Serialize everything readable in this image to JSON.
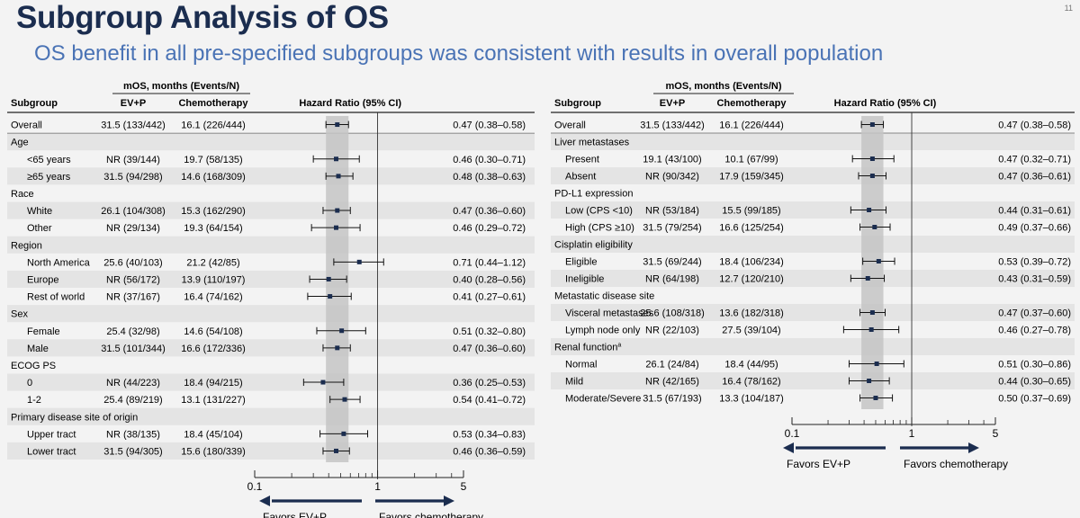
{
  "slide": {
    "title": "Subgroup Analysis of OS",
    "subtitle": "OS benefit in all pre-specified subgroups was consistent with results in overall population",
    "page_number": "11"
  },
  "chart_data": [
    {
      "type": "forest",
      "header": {
        "group": "mOS, months (Events/N)",
        "subgroup": "Subgroup",
        "arm1": "EV+P",
        "arm2": "Chemotherapy",
        "hr": "Hazard Ratio (95% CI)"
      },
      "axis": {
        "scale": "log",
        "range": [
          0.1,
          5
        ],
        "major_ticks": [
          0.1,
          1,
          5
        ],
        "tick_labels": [
          "0.1",
          "1",
          "5"
        ],
        "reference_line": 1
      },
      "favors_left": "Favors EV+P",
      "favors_right": "Favors chemotherapy",
      "overall_hr": 0.47,
      "overall_ci": [
        0.38,
        0.58
      ],
      "rows": [
        {
          "kind": "data",
          "label": "Overall",
          "indent": false,
          "ev": "31.5 (133/442)",
          "chemo": "16.1 (226/444)",
          "hr": 0.47,
          "lo": 0.38,
          "hi": 0.58,
          "hr_text": "0.47 (0.38–0.58)"
        },
        {
          "kind": "header",
          "label": "Age"
        },
        {
          "kind": "data",
          "label": "<65 years",
          "indent": true,
          "ev": "NR (39/144)",
          "chemo": "19.7 (58/135)",
          "hr": 0.46,
          "lo": 0.3,
          "hi": 0.71,
          "hr_text": "0.46 (0.30–0.71)"
        },
        {
          "kind": "data",
          "label": "≥65 years",
          "indent": true,
          "ev": "31.5 (94/298)",
          "chemo": "14.6 (168/309)",
          "hr": 0.48,
          "lo": 0.38,
          "hi": 0.63,
          "hr_text": "0.48 (0.38–0.63)"
        },
        {
          "kind": "header",
          "label": "Race"
        },
        {
          "kind": "data",
          "label": "White",
          "indent": true,
          "ev": "26.1 (104/308)",
          "chemo": "15.3 (162/290)",
          "hr": 0.47,
          "lo": 0.36,
          "hi": 0.6,
          "hr_text": "0.47 (0.36–0.60)"
        },
        {
          "kind": "data",
          "label": "Other",
          "indent": true,
          "ev": "NR (29/134)",
          "chemo": "19.3 (64/154)",
          "hr": 0.46,
          "lo": 0.29,
          "hi": 0.72,
          "hr_text": "0.46 (0.29–0.72)"
        },
        {
          "kind": "header",
          "label": "Region"
        },
        {
          "kind": "data",
          "label": "North America",
          "indent": true,
          "ev": "25.6 (40/103)",
          "chemo": "21.2 (42/85)",
          "hr": 0.71,
          "lo": 0.44,
          "hi": 1.12,
          "hr_text": "0.71 (0.44–1.12)"
        },
        {
          "kind": "data",
          "label": "Europe",
          "indent": true,
          "ev": "NR (56/172)",
          "chemo": "13.9 (110/197)",
          "hr": 0.4,
          "lo": 0.28,
          "hi": 0.56,
          "hr_text": "0.40 (0.28–0.56)"
        },
        {
          "kind": "data",
          "label": "Rest of world",
          "indent": true,
          "ev": "NR (37/167)",
          "chemo": "16.4 (74/162)",
          "hr": 0.41,
          "lo": 0.27,
          "hi": 0.61,
          "hr_text": "0.41 (0.27–0.61)"
        },
        {
          "kind": "header",
          "label": "Sex"
        },
        {
          "kind": "data",
          "label": "Female",
          "indent": true,
          "ev": "25.4 (32/98)",
          "chemo": "14.6 (54/108)",
          "hr": 0.51,
          "lo": 0.32,
          "hi": 0.8,
          "hr_text": "0.51 (0.32–0.80)"
        },
        {
          "kind": "data",
          "label": "Male",
          "indent": true,
          "ev": "31.5 (101/344)",
          "chemo": "16.6 (172/336)",
          "hr": 0.47,
          "lo": 0.36,
          "hi": 0.6,
          "hr_text": "0.47 (0.36–0.60)"
        },
        {
          "kind": "header",
          "label": "ECOG PS"
        },
        {
          "kind": "data",
          "label": "0",
          "indent": true,
          "ev": "NR (44/223)",
          "chemo": "18.4 (94/215)",
          "hr": 0.36,
          "lo": 0.25,
          "hi": 0.53,
          "hr_text": "0.36 (0.25–0.53)"
        },
        {
          "kind": "data",
          "label": "1-2",
          "indent": true,
          "ev": "25.4 (89/219)",
          "chemo": "13.1 (131/227)",
          "hr": 0.54,
          "lo": 0.41,
          "hi": 0.72,
          "hr_text": "0.54 (0.41–0.72)"
        },
        {
          "kind": "header",
          "label": "Primary disease site of origin"
        },
        {
          "kind": "data",
          "label": "Upper tract",
          "indent": true,
          "ev": "NR (38/135)",
          "chemo": "18.4 (45/104)",
          "hr": 0.53,
          "lo": 0.34,
          "hi": 0.83,
          "hr_text": "0.53 (0.34–0.83)"
        },
        {
          "kind": "data",
          "label": "Lower tract",
          "indent": true,
          "ev": "31.5 (94/305)",
          "chemo": "15.6 (180/339)",
          "hr": 0.46,
          "lo": 0.36,
          "hi": 0.59,
          "hr_text": "0.46 (0.36–0.59)"
        }
      ]
    },
    {
      "type": "forest",
      "header": {
        "group": "mOS, months (Events/N)",
        "subgroup": "Subgroup",
        "arm1": "EV+P",
        "arm2": "Chemotherapy",
        "hr": "Hazard Ratio (95% CI)"
      },
      "axis": {
        "scale": "log",
        "range": [
          0.1,
          5
        ],
        "major_ticks": [
          0.1,
          1,
          5
        ],
        "tick_labels": [
          "0.1",
          "1",
          "5"
        ],
        "reference_line": 1
      },
      "favors_left": "Favors EV+P",
      "favors_right": "Favors chemotherapy",
      "overall_hr": 0.47,
      "overall_ci": [
        0.38,
        0.58
      ],
      "rows": [
        {
          "kind": "data",
          "label": "Overall",
          "indent": false,
          "ev": "31.5 (133/442)",
          "chemo": "16.1 (226/444)",
          "hr": 0.47,
          "lo": 0.38,
          "hi": 0.58,
          "hr_text": "0.47 (0.38–0.58)"
        },
        {
          "kind": "header",
          "label": "Liver metastases"
        },
        {
          "kind": "data",
          "label": "Present",
          "indent": true,
          "ev": "19.1 (43/100)",
          "chemo": "10.1 (67/99)",
          "hr": 0.47,
          "lo": 0.32,
          "hi": 0.71,
          "hr_text": "0.47 (0.32–0.71)"
        },
        {
          "kind": "data",
          "label": "Absent",
          "indent": true,
          "ev": "NR (90/342)",
          "chemo": "17.9 (159/345)",
          "hr": 0.47,
          "lo": 0.36,
          "hi": 0.61,
          "hr_text": "0.47 (0.36–0.61)"
        },
        {
          "kind": "header",
          "label": "PD-L1 expression"
        },
        {
          "kind": "data",
          "label": "Low (CPS <10)",
          "indent": true,
          "ev": "NR (53/184)",
          "chemo": "15.5 (99/185)",
          "hr": 0.44,
          "lo": 0.31,
          "hi": 0.61,
          "hr_text": "0.44 (0.31–0.61)"
        },
        {
          "kind": "data",
          "label": "High (CPS ≥10)",
          "indent": true,
          "ev": "31.5 (79/254)",
          "chemo": "16.6 (125/254)",
          "hr": 0.49,
          "lo": 0.37,
          "hi": 0.66,
          "hr_text": "0.49 (0.37–0.66)"
        },
        {
          "kind": "header",
          "label": "Cisplatin eligibility"
        },
        {
          "kind": "data",
          "label": "Eligible",
          "indent": true,
          "ev": "31.5 (69/244)",
          "chemo": "18.4 (106/234)",
          "hr": 0.53,
          "lo": 0.39,
          "hi": 0.72,
          "hr_text": "0.53 (0.39–0.72)"
        },
        {
          "kind": "data",
          "label": "Ineligible",
          "indent": true,
          "ev": "NR (64/198)",
          "chemo": "12.7 (120/210)",
          "hr": 0.43,
          "lo": 0.31,
          "hi": 0.59,
          "hr_text": "0.43 (0.31–0.59)"
        },
        {
          "kind": "header",
          "label": "Metastatic disease site"
        },
        {
          "kind": "data",
          "label": "Visceral metastases",
          "indent": true,
          "ev": "25.6 (108/318)",
          "chemo": "13.6 (182/318)",
          "hr": 0.47,
          "lo": 0.37,
          "hi": 0.6,
          "hr_text": "0.47 (0.37–0.60)"
        },
        {
          "kind": "data",
          "label": "Lymph node only",
          "indent": true,
          "ev": "NR (22/103)",
          "chemo": "27.5 (39/104)",
          "hr": 0.46,
          "lo": 0.27,
          "hi": 0.78,
          "hr_text": "0.46 (0.27–0.78)"
        },
        {
          "kind": "header",
          "label": "Renal function",
          "sup": "a"
        },
        {
          "kind": "data",
          "label": "Normal",
          "indent": true,
          "ev": "26.1 (24/84)",
          "chemo": "18.4 (44/95)",
          "hr": 0.51,
          "lo": 0.3,
          "hi": 0.86,
          "hr_text": "0.51 (0.30–0.86)"
        },
        {
          "kind": "data",
          "label": "Mild",
          "indent": true,
          "ev": "NR (42/165)",
          "chemo": "16.4 (78/162)",
          "hr": 0.44,
          "lo": 0.3,
          "hi": 0.65,
          "hr_text": "0.44 (0.30–0.65)"
        },
        {
          "kind": "data",
          "label": "Moderate/Severe",
          "indent": true,
          "ev": "31.5 (67/193)",
          "chemo": "13.3 (104/187)",
          "hr": 0.5,
          "lo": 0.37,
          "hi": 0.69,
          "hr_text": "0.50 (0.37–0.69)"
        }
      ]
    }
  ]
}
